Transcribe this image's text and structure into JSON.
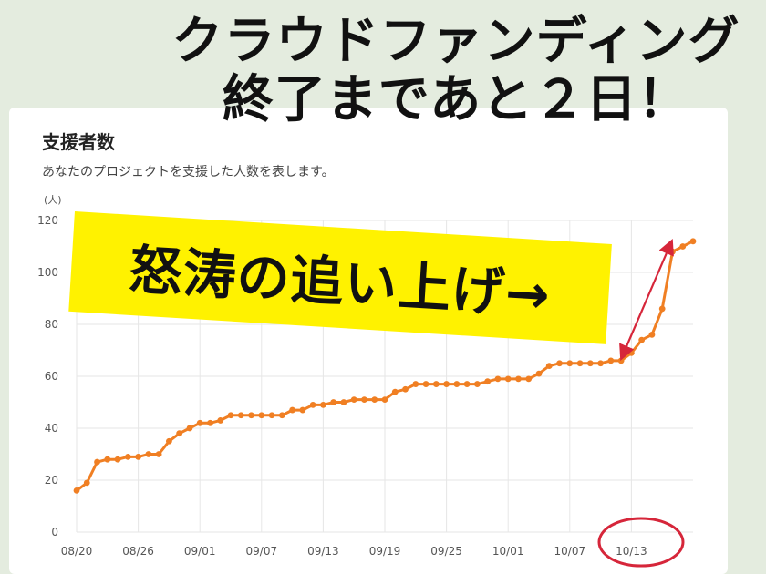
{
  "headline": {
    "line1": "クラウドファンディング",
    "line2": "終了まであと２日！"
  },
  "banner": {
    "text": "怒涛の追い上げ→"
  },
  "chart_data": {
    "type": "line",
    "title": "支援者数",
    "subtitle": "あなたのプロジェクトを支援した人数を表します。",
    "ylabel": "(人)",
    "ylim": [
      0,
      120
    ],
    "yticks": [
      0,
      20,
      40,
      60,
      80,
      100,
      120
    ],
    "xtick_labels": [
      "08/20",
      "08/26",
      "09/01",
      "09/07",
      "09/13",
      "09/19",
      "09/25",
      "10/01",
      "10/07",
      "10/13"
    ],
    "grid": true,
    "series_color": "#f07f23",
    "annotation_colors": {
      "arrow": "#d6263a",
      "circle": "#d6263a"
    },
    "series": [
      {
        "x": [
          "08/20",
          "08/21",
          "08/22",
          "08/23",
          "08/24",
          "08/25",
          "08/26",
          "08/27",
          "08/28",
          "08/29",
          "08/30",
          "08/31",
          "09/01",
          "09/02",
          "09/03",
          "09/04",
          "09/05",
          "09/06",
          "09/07",
          "09/08",
          "09/09",
          "09/10",
          "09/11",
          "09/12",
          "09/13",
          "09/14",
          "09/15",
          "09/16",
          "09/17",
          "09/18",
          "09/19",
          "09/20",
          "09/21",
          "09/22",
          "09/23",
          "09/24",
          "09/25",
          "09/26",
          "09/27",
          "09/28",
          "09/29",
          "09/30",
          "10/01",
          "10/02",
          "10/03",
          "10/04",
          "10/05",
          "10/06",
          "10/07",
          "10/08",
          "10/09",
          "10/10",
          "10/11",
          "10/12",
          "10/13",
          "10/14",
          "10/15",
          "10/16",
          "10/17",
          "10/18",
          "10/19"
        ],
        "values": [
          16,
          19,
          27,
          28,
          28,
          29,
          29,
          30,
          30,
          35,
          38,
          40,
          42,
          42,
          43,
          45,
          45,
          45,
          45,
          45,
          45,
          47,
          47,
          49,
          49,
          50,
          50,
          51,
          51,
          51,
          51,
          54,
          55,
          57,
          57,
          57,
          57,
          57,
          57,
          57,
          58,
          59,
          59,
          59,
          59,
          61,
          64,
          65,
          65,
          65,
          65,
          65,
          66,
          66,
          69,
          74,
          76,
          86,
          108,
          110,
          112
        ]
      }
    ]
  }
}
